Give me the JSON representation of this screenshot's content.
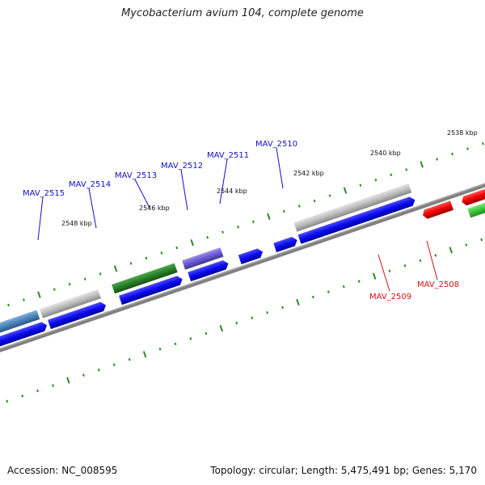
{
  "header": {
    "title": "Mycobacterium avium 104, complete genome"
  },
  "footer": {
    "accession": "Accession: NC_008595",
    "stats": "Topology: circular; Length: 5,475,491 bp; Genes: 5,170"
  },
  "scale_labels": [
    "2538 kbp",
    "2540 kbp",
    "2542 kbp",
    "2544 kbp",
    "2546 kbp",
    "2548 kbp"
  ],
  "genes": [
    {
      "name": "MAV_2515",
      "color": "#1010c0"
    },
    {
      "name": "MAV_2514",
      "color": "#1010c0"
    },
    {
      "name": "MAV_2513",
      "color": "#1010c0"
    },
    {
      "name": "MAV_2512",
      "color": "#1010c0"
    },
    {
      "name": "MAV_2511",
      "color": "#1010c0"
    },
    {
      "name": "MAV_2510",
      "color": "#1010c0"
    },
    {
      "name": "MAV_2509",
      "color": "#d01010"
    },
    {
      "name": "MAV_2508",
      "color": "#d01010"
    }
  ],
  "colors": {
    "forward_cds": "#0a0af0",
    "reverse_cds": "#ee0000",
    "gene_green_dark": "#2a7f2a",
    "gene_green_light": "#39c639",
    "gene_purple": "#6a5ad2",
    "gene_grey": "#b8b8b8",
    "gene_steel": "#4a82b8",
    "backbone": "#7a7a7a",
    "tick": "#2a8a2a"
  }
}
